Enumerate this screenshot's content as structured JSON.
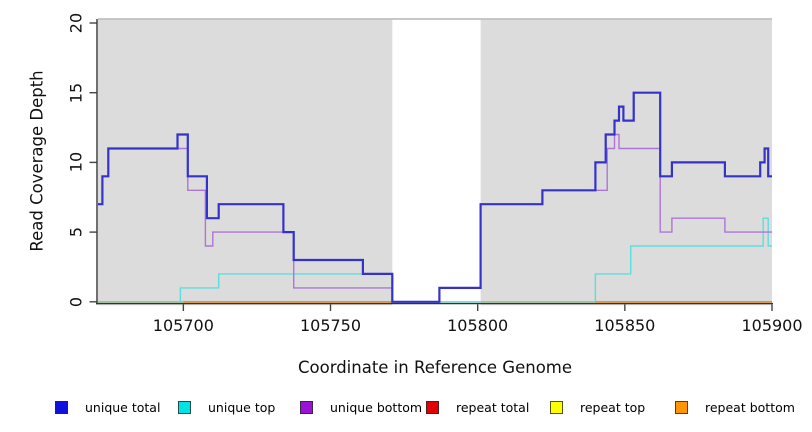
{
  "figure": {
    "x_axis_label": "Coordinate in Reference Genome",
    "y_axis_label": "Read Coverage Depth",
    "x_tick_labels": [
      "105700",
      "105750",
      "105800",
      "105850",
      "105900"
    ],
    "x_tick_values": [
      105700,
      105750,
      105800,
      105850,
      105900
    ],
    "y_tick_labels": [
      "0",
      "5",
      "10",
      "15",
      "20"
    ],
    "y_tick_values": [
      0,
      5,
      10,
      15,
      20
    ]
  },
  "legend": {
    "items": [
      {
        "label": "unique total",
        "color": "#1111dd"
      },
      {
        "label": "unique top",
        "color": "#00e3e3"
      },
      {
        "label": "unique bottom",
        "color": "#9913d2"
      },
      {
        "label": "repeat total",
        "color": "#e30000"
      },
      {
        "label": "repeat top",
        "color": "#ffff00"
      },
      {
        "label": "repeat bottom",
        "color": "#ff9500"
      }
    ]
  },
  "chart_data": {
    "type": "line",
    "style": "step-after",
    "title": "",
    "xlabel": "Coordinate in Reference Genome",
    "ylabel": "Read Coverage Depth",
    "xlim": [
      105671,
      105900
    ],
    "ylim": [
      0,
      20
    ],
    "grid": false,
    "legend_position": "bottom",
    "plot_background": "#dcdcdc",
    "coverage_bands_x": [
      [
        105671,
        105771
      ],
      [
        105801,
        105900
      ]
    ],
    "uncovered_gap_x": [
      105771,
      105801
    ],
    "series": [
      {
        "name": "unique total",
        "color": "#3333cc",
        "width": 2.2,
        "points": [
          [
            105671,
            7
          ],
          [
            105672.5,
            9
          ],
          [
            105674.5,
            11
          ],
          [
            105698,
            12
          ],
          [
            105701.5,
            9
          ],
          [
            105708,
            6
          ],
          [
            105712,
            7
          ],
          [
            105734,
            5
          ],
          [
            105737.5,
            3
          ],
          [
            105761,
            2
          ],
          [
            105771,
            0
          ],
          [
            105787,
            1
          ],
          [
            105801,
            7
          ],
          [
            105822,
            8
          ],
          [
            105840,
            10
          ],
          [
            105843.5,
            12
          ],
          [
            105846.5,
            13
          ],
          [
            105848,
            14
          ],
          [
            105849.5,
            13
          ],
          [
            105853,
            15
          ],
          [
            105862,
            9
          ],
          [
            105866,
            10
          ],
          [
            105884,
            9
          ],
          [
            105896,
            10
          ],
          [
            105897.5,
            11
          ],
          [
            105898.7,
            9
          ]
        ]
      },
      {
        "name": "unique top",
        "color": "#5cdede",
        "width": 1.4,
        "points": [
          [
            105671,
            0
          ],
          [
            105699,
            1
          ],
          [
            105712,
            2
          ],
          [
            105771,
            0
          ],
          [
            105840,
            2
          ],
          [
            105852,
            4
          ],
          [
            105897,
            6
          ],
          [
            105898.7,
            4
          ]
        ]
      },
      {
        "name": "unique bottom",
        "color": "#af74d8",
        "width": 1.4,
        "points": [
          [
            105671,
            7
          ],
          [
            105672.5,
            9
          ],
          [
            105674.5,
            11
          ],
          [
            105701.5,
            8
          ],
          [
            105707.5,
            4
          ],
          [
            105710,
            5
          ],
          [
            105737.5,
            1
          ],
          [
            105771,
            0
          ],
          [
            105787,
            1
          ],
          [
            105801,
            7
          ],
          [
            105822,
            8
          ],
          [
            105844,
            11
          ],
          [
            105846.5,
            12
          ],
          [
            105848,
            11
          ],
          [
            105862,
            5
          ],
          [
            105866,
            6
          ],
          [
            105884,
            5
          ]
        ]
      },
      {
        "name": "repeat total",
        "color": "#e30000",
        "width": 1.2,
        "points": [
          [
            105671,
            0
          ]
        ]
      },
      {
        "name": "repeat top",
        "color": "#ffff00",
        "width": 1.2,
        "points": [
          [
            105671,
            0
          ]
        ]
      },
      {
        "name": "repeat bottom",
        "color": "#ff8c00",
        "width": 1.2,
        "points": [
          [
            105671,
            0
          ]
        ]
      }
    ],
    "baseline_visible_segments": [
      {
        "from": 105671,
        "to": 105700,
        "color": "#8fd08f"
      },
      {
        "from": 105700,
        "to": 105771,
        "color": "#ff8c00"
      },
      {
        "from": 105801,
        "to": 105840,
        "color": "#8fd08f"
      },
      {
        "from": 105840,
        "to": 105900,
        "color": "#ff8c00"
      }
    ]
  }
}
